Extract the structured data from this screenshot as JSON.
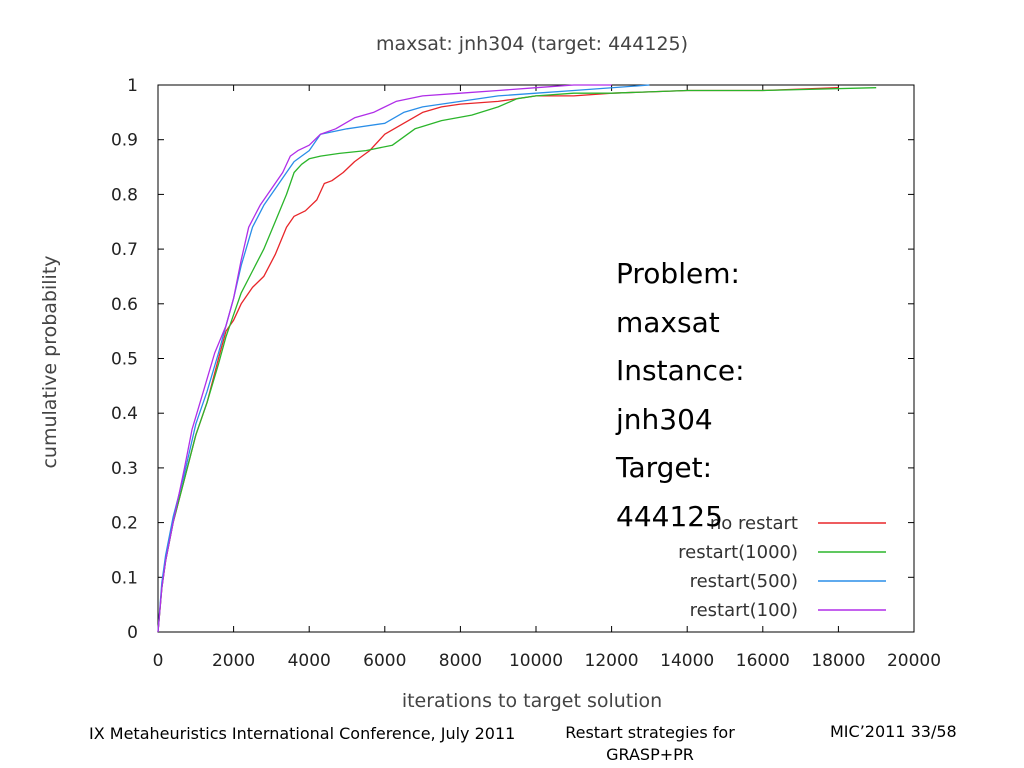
{
  "footer": {
    "left": "IX Metaheuristics International Conference, July 2011",
    "center_line1": "Restart strategies for",
    "center_line2": "GRASP+PR",
    "right": "MIC’2011 33/58"
  },
  "overlay": {
    "lines": [
      "Problem:",
      "maxsat",
      "Instance:",
      "jnh304",
      "Target:",
      "444125"
    ]
  },
  "chart_data": {
    "type": "line",
    "title": "maxsat: jnh304 (target: 444125)",
    "xlabel": "iterations to target solution",
    "ylabel": "cumulative probability",
    "xlim": [
      0,
      20000
    ],
    "ylim": [
      0,
      1
    ],
    "xticks": [
      0,
      2000,
      4000,
      6000,
      8000,
      10000,
      12000,
      14000,
      16000,
      18000,
      20000
    ],
    "yticks": [
      0,
      0.1,
      0.2,
      0.3,
      0.4,
      0.5,
      0.6,
      0.7,
      0.8,
      0.9,
      1
    ],
    "grid": false,
    "legend_position": "bottom-right",
    "series": [
      {
        "name": "no restart",
        "color": "#e8262a",
        "x": [
          0,
          100,
          200,
          400,
          700,
          1000,
          1300,
          1600,
          1800,
          2000,
          2200,
          2500,
          2800,
          3100,
          3400,
          3600,
          3900,
          4200,
          4400,
          4600,
          4900,
          5200,
          5600,
          6000,
          6500,
          7000,
          7500,
          8000,
          9000,
          10000,
          11000,
          12000,
          14000,
          16000,
          18000
        ],
        "y": [
          0,
          0.08,
          0.13,
          0.2,
          0.28,
          0.36,
          0.42,
          0.5,
          0.55,
          0.57,
          0.6,
          0.63,
          0.65,
          0.69,
          0.74,
          0.76,
          0.77,
          0.79,
          0.82,
          0.825,
          0.84,
          0.86,
          0.88,
          0.91,
          0.93,
          0.95,
          0.96,
          0.965,
          0.97,
          0.98,
          0.98,
          0.985,
          0.99,
          0.99,
          0.995
        ]
      },
      {
        "name": "restart(1000)",
        "color": "#2bb52b",
        "x": [
          0,
          100,
          200,
          400,
          700,
          1000,
          1300,
          1600,
          1800,
          2000,
          2200,
          2500,
          2800,
          3100,
          3400,
          3600,
          3800,
          4000,
          4300,
          4800,
          5500,
          6200,
          6800,
          7500,
          8300,
          9000,
          9500,
          10000,
          11000,
          12000,
          14000,
          16000,
          19000
        ],
        "y": [
          0,
          0.08,
          0.13,
          0.2,
          0.28,
          0.36,
          0.42,
          0.49,
          0.54,
          0.58,
          0.62,
          0.66,
          0.7,
          0.75,
          0.8,
          0.84,
          0.855,
          0.865,
          0.87,
          0.875,
          0.88,
          0.89,
          0.92,
          0.935,
          0.945,
          0.96,
          0.975,
          0.98,
          0.985,
          0.985,
          0.99,
          0.99,
          0.995
        ]
      },
      {
        "name": "restart(500)",
        "color": "#2a8ee8",
        "x": [
          0,
          100,
          200,
          400,
          700,
          1000,
          1300,
          1600,
          1800,
          2000,
          2200,
          2500,
          2800,
          3100,
          3400,
          3600,
          3800,
          4000,
          4300,
          5000,
          6000,
          6500,
          7000,
          8000,
          9000,
          10000,
          11000,
          13000
        ],
        "y": [
          0,
          0.09,
          0.14,
          0.21,
          0.29,
          0.38,
          0.44,
          0.51,
          0.56,
          0.61,
          0.67,
          0.74,
          0.78,
          0.81,
          0.84,
          0.86,
          0.87,
          0.88,
          0.91,
          0.92,
          0.93,
          0.95,
          0.96,
          0.97,
          0.98,
          0.985,
          0.99,
          1.0
        ]
      },
      {
        "name": "restart(100)",
        "color": "#b02ee8",
        "x": [
          0,
          100,
          200,
          400,
          700,
          900,
          1200,
          1500,
          1800,
          2000,
          2200,
          2400,
          2700,
          3000,
          3300,
          3500,
          3700,
          4000,
          4300,
          4700,
          5200,
          5700,
          6300,
          7000,
          8000,
          9000,
          10000,
          11000,
          12000
        ],
        "y": [
          0,
          0.08,
          0.13,
          0.2,
          0.3,
          0.37,
          0.44,
          0.51,
          0.56,
          0.61,
          0.68,
          0.74,
          0.78,
          0.81,
          0.84,
          0.87,
          0.88,
          0.89,
          0.91,
          0.92,
          0.94,
          0.95,
          0.97,
          0.98,
          0.985,
          0.99,
          0.995,
          1.0,
          1.0
        ]
      }
    ]
  }
}
